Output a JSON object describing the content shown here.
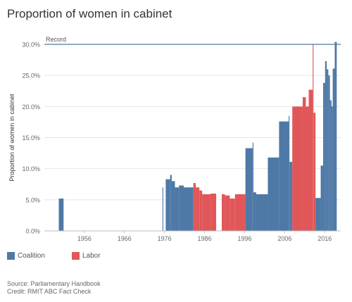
{
  "title": "Proportion of women in cabinet",
  "legend": [
    {
      "label": "Coalition",
      "color": "#4e79a7"
    },
    {
      "label": "Labor",
      "color": "#e15759"
    }
  ],
  "footer": {
    "source": "Source: Parliamentary Handbook",
    "credit": "Credit: RMIT ABC Fact Check"
  },
  "chart_data": {
    "type": "bar",
    "title": "Proportion of women in cabinet",
    "ylabel": "Proportion of women in cabinet",
    "xlabel": "",
    "ylim": [
      0,
      30
    ],
    "xlim": [
      1946,
      2020
    ],
    "x_ticks": [
      1956,
      1966,
      1976,
      1986,
      1996,
      2006,
      2016
    ],
    "y_ticks": [
      0,
      5,
      10,
      15,
      20,
      25,
      30
    ],
    "y_tick_labels": [
      "0.0%",
      "5.0%",
      "10.0%",
      "15.0%",
      "20.0%",
      "25.0%",
      "30.0%"
    ],
    "grid": true,
    "legend_position": "bottom-left",
    "reference_line": {
      "label": "Record",
      "value": 30
    },
    "series": [
      {
        "name": "Coalition",
        "color": "#4e79a7",
        "segments": [
          {
            "start": 1949.6,
            "end": 1950.8,
            "value": 5.2
          },
          {
            "start": 1975.5,
            "end": 1975.7,
            "value": 7.0
          },
          {
            "start": 1976.3,
            "end": 1977.4,
            "value": 8.3
          },
          {
            "start": 1977.4,
            "end": 1977.8,
            "value": 9.0
          },
          {
            "start": 1977.8,
            "end": 1978.6,
            "value": 8.0
          },
          {
            "start": 1978.6,
            "end": 1979.6,
            "value": 7.0
          },
          {
            "start": 1979.6,
            "end": 1980.8,
            "value": 7.3
          },
          {
            "start": 1980.8,
            "end": 1983.2,
            "value": 7.0
          },
          {
            "start": 1996.2,
            "end": 1998.0,
            "value": 13.3
          },
          {
            "start": 1998.0,
            "end": 1998.2,
            "value": 14.2
          },
          {
            "start": 1998.2,
            "end": 1998.9,
            "value": 6.2
          },
          {
            "start": 1998.9,
            "end": 2001.8,
            "value": 5.9
          },
          {
            "start": 2001.8,
            "end": 2004.6,
            "value": 11.8
          },
          {
            "start": 2004.6,
            "end": 2007.0,
            "value": 17.6
          },
          {
            "start": 2007.0,
            "end": 2007.2,
            "value": 18.5
          },
          {
            "start": 2007.2,
            "end": 2007.9,
            "value": 11.1
          },
          {
            "start": 2013.7,
            "end": 2015.0,
            "value": 5.3
          },
          {
            "start": 2015.0,
            "end": 2015.6,
            "value": 10.5
          },
          {
            "start": 2015.6,
            "end": 2016.1,
            "value": 23.8
          },
          {
            "start": 2016.1,
            "end": 2016.5,
            "value": 27.3
          },
          {
            "start": 2016.5,
            "end": 2016.9,
            "value": 26.0
          },
          {
            "start": 2016.9,
            "end": 2017.3,
            "value": 25.0
          },
          {
            "start": 2017.3,
            "end": 2017.7,
            "value": 21.0
          },
          {
            "start": 2017.7,
            "end": 2018.0,
            "value": 20.0
          },
          {
            "start": 2018.0,
            "end": 2018.5,
            "value": 26.1
          },
          {
            "start": 2018.5,
            "end": 2019.0,
            "value": 30.4
          }
        ]
      },
      {
        "name": "Labor",
        "color": "#e15759",
        "segments": [
          {
            "start": 1983.2,
            "end": 1983.8,
            "value": 7.7
          },
          {
            "start": 1983.8,
            "end": 1984.7,
            "value": 7.0
          },
          {
            "start": 1984.7,
            "end": 1985.4,
            "value": 6.5
          },
          {
            "start": 1985.4,
            "end": 1987.5,
            "value": 5.9
          },
          {
            "start": 1987.5,
            "end": 1988.9,
            "value": 6.0
          },
          {
            "start": 1990.3,
            "end": 1991.1,
            "value": 5.9
          },
          {
            "start": 1991.1,
            "end": 1992.3,
            "value": 5.7
          },
          {
            "start": 1992.3,
            "end": 1993.6,
            "value": 5.2
          },
          {
            "start": 1993.6,
            "end": 1996.2,
            "value": 5.9
          },
          {
            "start": 2007.9,
            "end": 2010.5,
            "value": 20.0
          },
          {
            "start": 2010.5,
            "end": 2011.3,
            "value": 21.5
          },
          {
            "start": 2011.3,
            "end": 2012.0,
            "value": 20.0
          },
          {
            "start": 2012.0,
            "end": 2013.0,
            "value": 22.7
          },
          {
            "start": 2013.0,
            "end": 2013.2,
            "value": 30.0
          },
          {
            "start": 2013.2,
            "end": 2013.7,
            "value": 19.0
          }
        ]
      }
    ]
  }
}
